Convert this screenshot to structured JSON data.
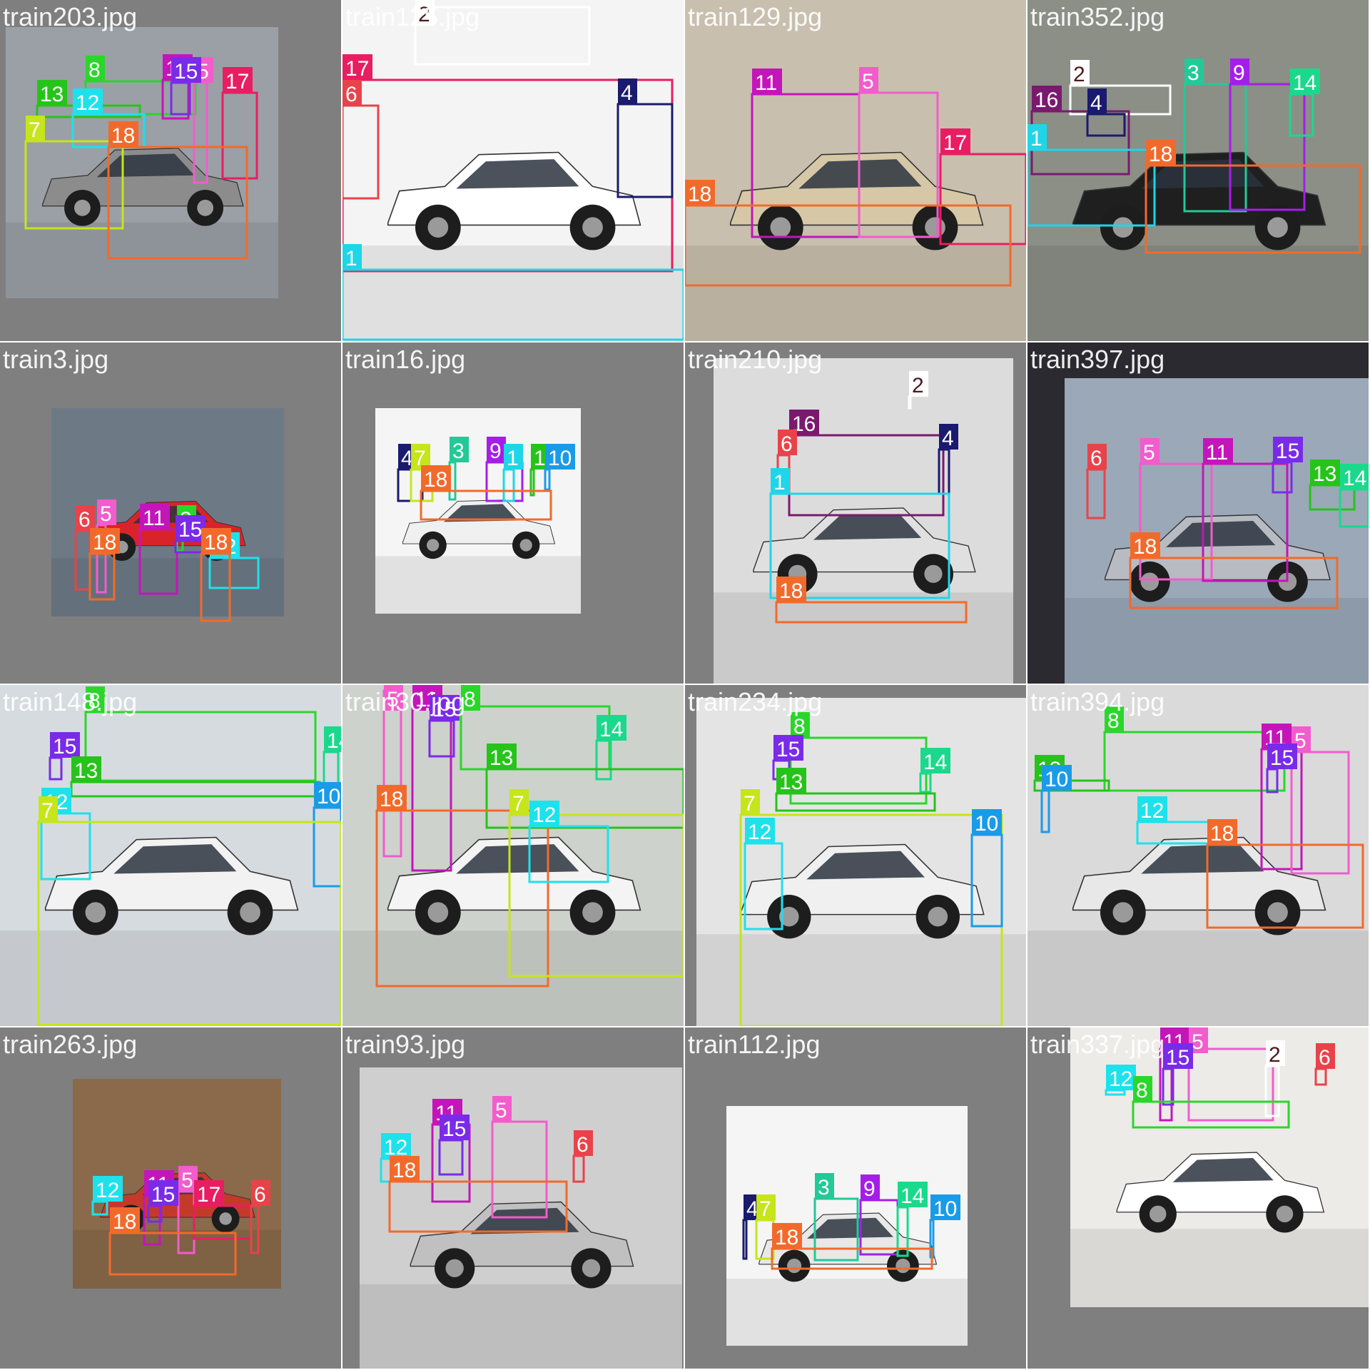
{
  "tiles": [
    {
      "filename": "train203.jpg",
      "labels": [
        "8",
        "11",
        "5",
        "15",
        "13",
        "17",
        "12",
        "7",
        "18"
      ]
    },
    {
      "filename": "train125.jpg",
      "labels": [
        "2",
        "17",
        "6",
        "4",
        "1"
      ]
    },
    {
      "filename": "train129.jpg",
      "labels": [
        "11",
        "5",
        "17",
        "18"
      ]
    },
    {
      "filename": "train352.jpg",
      "labels": [
        "2",
        "3",
        "9",
        "16",
        "4",
        "14",
        "1",
        "18"
      ]
    },
    {
      "filename": "train3.jpg",
      "labels": [
        "5",
        "11",
        "8",
        "15",
        "6",
        "12",
        "18",
        "18"
      ]
    },
    {
      "filename": "train16.jpg",
      "labels": [
        "3",
        "9",
        "4",
        "7",
        "1",
        "13",
        "10",
        "18"
      ]
    },
    {
      "filename": "train210.jpg",
      "labels": [
        "2",
        "16",
        "6",
        "4",
        "1",
        "18"
      ]
    },
    {
      "filename": "train397.jpg",
      "labels": [
        "6",
        "5",
        "11",
        "15",
        "13",
        "14",
        "18"
      ]
    },
    {
      "filename": "train148.jpg",
      "labels": [
        "8",
        "15",
        "14",
        "13",
        "12",
        "10",
        "7"
      ]
    },
    {
      "filename": "train30.jpg",
      "labels": [
        "5",
        "11",
        "8",
        "15",
        "14",
        "13",
        "18",
        "7",
        "12"
      ]
    },
    {
      "filename": "train234.jpg",
      "labels": [
        "8",
        "15",
        "14",
        "13",
        "7",
        "12",
        "10"
      ]
    },
    {
      "filename": "train394.jpg",
      "labels": [
        "8",
        "11",
        "5",
        "15",
        "13",
        "10",
        "12",
        "18"
      ]
    },
    {
      "filename": "train263.jpg",
      "labels": [
        "11",
        "5",
        "15",
        "17",
        "6",
        "12",
        "18"
      ]
    },
    {
      "filename": "train93.jpg",
      "labels": [
        "11",
        "5",
        "15",
        "6",
        "12",
        "18"
      ]
    },
    {
      "filename": "train112.jpg",
      "labels": [
        "3",
        "9",
        "4",
        "7",
        "14",
        "10",
        "18"
      ]
    },
    {
      "filename": "train337.jpg",
      "labels": [
        "11",
        "5",
        "2",
        "15",
        "6",
        "12",
        "8"
      ]
    }
  ],
  "class_colors": {
    "1": "#1ed6e8",
    "2": "#ffffff",
    "3": "#23c997",
    "4": "#1a1a6e",
    "5": "#f25ccc",
    "6": "#e8434a",
    "7": "#c6e51a",
    "8": "#2bd62b",
    "9": "#a51ee8",
    "10": "#1a9be8",
    "11": "#c415ba",
    "12": "#1ee1ec",
    "13": "#26c41a",
    "14": "#1ad98c",
    "15": "#7a2be8",
    "16": "#7a1a6e",
    "17": "#e81e62",
    "18": "#f26a2b"
  },
  "label_text_color": "#ffffff",
  "label_text_color_on_white": "#4a1a1a"
}
